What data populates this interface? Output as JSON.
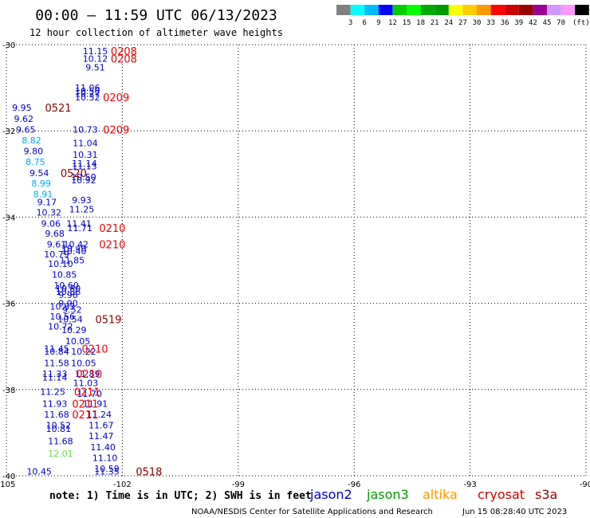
{
  "title": "00:00 – 11:59 UTC 06/13/2023",
  "subtitle": "12 hour collection of altimeter wave heights",
  "note": "note: 1) Time is in UTC; 2) SWH is in feet",
  "credit": "NOAA/NESDIS Center for Satellite Applications and Research",
  "generated": "Jun 15 08:28:40 UTC 2023",
  "color_scale": {
    "unit": "(ft)",
    "colors": [
      "#808080",
      "#00ffff",
      "#00bbff",
      "#0000ff",
      "#00cc00",
      "#00ff00",
      "#00aa00",
      "#009900",
      "#ffff00",
      "#ffcc00",
      "#ff9900",
      "#ff0000",
      "#cc0000",
      "#990000",
      "#990099",
      "#cc99ff",
      "#ff99ff",
      "#000000"
    ],
    "labels": [
      "3",
      "6",
      "9",
      "12",
      "15",
      "18",
      "21",
      "24",
      "27",
      "30",
      "33",
      "36",
      "39",
      "42",
      "45",
      "70"
    ]
  },
  "legend": [
    {
      "label": "jason2",
      "color": "#0000cc"
    },
    {
      "label": "jason3",
      "color": "#009900"
    },
    {
      "label": "altika",
      "color": "#ff9900"
    },
    {
      "label": "cryosat",
      "color": "#cc0000"
    },
    {
      "label": "s3a",
      "color": "#990000"
    }
  ],
  "chart_data": {
    "type": "scatter",
    "xlim": [
      -105,
      -90
    ],
    "ylim": [
      -40,
      -30
    ],
    "xticks": [
      "-105",
      "-102",
      "-99",
      "-96",
      "-93",
      "-90"
    ],
    "yticks": [
      "-30",
      "-32",
      "-34",
      "-36",
      "-38",
      "-40"
    ],
    "grid": true,
    "points": [
      {
        "x": -102.7,
        "y": -30.15,
        "t": "11.15",
        "c": "#0000cc"
      },
      {
        "x": -102.7,
        "y": -30.32,
        "t": "10.12",
        "c": "#0000cc"
      },
      {
        "x": -102.7,
        "y": -30.53,
        "t": "9.51",
        "c": "#0000cc"
      },
      {
        "x": -102.9,
        "y": -31.0,
        "t": "11.06",
        "c": "#0000cc"
      },
      {
        "x": -102.9,
        "y": -31.07,
        "t": "10.50",
        "c": "#0000cc"
      },
      {
        "x": -102.9,
        "y": -31.14,
        "t": "10.27",
        "c": "#0000cc"
      },
      {
        "x": -102.9,
        "y": -31.22,
        "t": "10.32",
        "c": "#0000cc"
      },
      {
        "x": -104.6,
        "y": -31.46,
        "t": "9.95",
        "c": "#0000cc"
      },
      {
        "x": -104.55,
        "y": -31.72,
        "t": "9.62",
        "c": "#0000cc"
      },
      {
        "x": -104.5,
        "y": -31.97,
        "t": "9.65",
        "c": "#0000cc"
      },
      {
        "x": -102.96,
        "y": -31.97,
        "t": "10.73",
        "c": "#0000cc"
      },
      {
        "x": -104.35,
        "y": -32.22,
        "t": "8.82",
        "c": "#00aaee"
      },
      {
        "x": -102.96,
        "y": -32.28,
        "t": "11.04",
        "c": "#0000cc"
      },
      {
        "x": -104.3,
        "y": -32.47,
        "t": "9.80",
        "c": "#0000cc"
      },
      {
        "x": -102.96,
        "y": -32.55,
        "t": "10.31",
        "c": "#0000cc"
      },
      {
        "x": -104.25,
        "y": -32.72,
        "t": "8.75",
        "c": "#00aaee"
      },
      {
        "x": -102.98,
        "y": -32.75,
        "t": "11.14",
        "c": "#0000cc"
      },
      {
        "x": -102.98,
        "y": -32.82,
        "t": "11.13",
        "c": "#0000cc"
      },
      {
        "x": -104.15,
        "y": -32.98,
        "t": "9.54",
        "c": "#0000cc"
      },
      {
        "x": -103.0,
        "y": -33.07,
        "t": "10.50",
        "c": "#0000cc"
      },
      {
        "x": -103.0,
        "y": -33.14,
        "t": "10.92",
        "c": "#0000cc"
      },
      {
        "x": -104.1,
        "y": -33.22,
        "t": "8.99",
        "c": "#00aaee"
      },
      {
        "x": -104.05,
        "y": -33.47,
        "t": "8.91",
        "c": "#00aaee"
      },
      {
        "x": -103.05,
        "y": -33.6,
        "t": "9.93",
        "c": "#0000cc"
      },
      {
        "x": -103.95,
        "y": -33.65,
        "t": "9.17",
        "c": "#0000cc"
      },
      {
        "x": -103.05,
        "y": -33.82,
        "t": "11.25",
        "c": "#0000cc"
      },
      {
        "x": -103.9,
        "y": -33.89,
        "t": "10.32",
        "c": "#0000cc"
      },
      {
        "x": -103.85,
        "y": -34.15,
        "t": "9.06",
        "c": "#0000cc"
      },
      {
        "x": -103.12,
        "y": -34.15,
        "t": "11.41",
        "c": "#0000cc"
      },
      {
        "x": -103.1,
        "y": -34.25,
        "t": "11.71",
        "c": "#0000cc"
      },
      {
        "x": -103.75,
        "y": -34.38,
        "t": "9.68",
        "c": "#0000cc"
      },
      {
        "x": -103.7,
        "y": -34.63,
        "t": "9.61",
        "c": "#0000cc"
      },
      {
        "x": -103.2,
        "y": -34.63,
        "t": "10.42",
        "c": "#0000cc"
      },
      {
        "x": -103.25,
        "y": -34.72,
        "t": "10.40",
        "c": "#0000cc"
      },
      {
        "x": -103.25,
        "y": -34.79,
        "t": "10.40",
        "c": "#0000cc"
      },
      {
        "x": -103.7,
        "y": -34.86,
        "t": "10.79",
        "c": "#0000cc"
      },
      {
        "x": -103.3,
        "y": -35.0,
        "t": "11.85",
        "c": "#0000cc"
      },
      {
        "x": -103.6,
        "y": -35.08,
        "t": "10.10",
        "c": "#0000cc"
      },
      {
        "x": -103.5,
        "y": -35.33,
        "t": "10.85",
        "c": "#0000cc"
      },
      {
        "x": -103.45,
        "y": -35.58,
        "t": "10.60",
        "c": "#0000cc"
      },
      {
        "x": -103.4,
        "y": -35.66,
        "t": "10.80",
        "c": "#0000cc"
      },
      {
        "x": -103.4,
        "y": -35.73,
        "t": "10.86",
        "c": "#0000cc"
      },
      {
        "x": -103.4,
        "y": -35.8,
        "t": "9.96",
        "c": "#0000cc"
      },
      {
        "x": -103.4,
        "y": -36.0,
        "t": "9.90",
        "c": "#0000cc"
      },
      {
        "x": -103.55,
        "y": -36.07,
        "t": "10.83",
        "c": "#0000cc"
      },
      {
        "x": -103.3,
        "y": -36.15,
        "t": "9.52",
        "c": "#0000cc"
      },
      {
        "x": -103.55,
        "y": -36.3,
        "t": "10.56",
        "c": "#0000cc"
      },
      {
        "x": -103.35,
        "y": -36.37,
        "t": "10.54",
        "c": "#0000cc"
      },
      {
        "x": -103.6,
        "y": -36.53,
        "t": "10.72",
        "c": "#0000cc"
      },
      {
        "x": -103.25,
        "y": -36.62,
        "t": "10.29",
        "c": "#0000cc"
      },
      {
        "x": -103.15,
        "y": -36.88,
        "t": "10.05",
        "c": "#0000cc"
      },
      {
        "x": -103.7,
        "y": -37.05,
        "t": "11.45",
        "c": "#0000cc"
      },
      {
        "x": -103.7,
        "y": -37.12,
        "t": "10.84",
        "c": "#0000cc"
      },
      {
        "x": -103.0,
        "y": -37.12,
        "t": "10.22",
        "c": "#0000cc"
      },
      {
        "x": -103.7,
        "y": -37.38,
        "t": "11.58",
        "c": "#0000cc"
      },
      {
        "x": -103.0,
        "y": -37.38,
        "t": "10.05",
        "c": "#0000cc"
      },
      {
        "x": -103.75,
        "y": -37.63,
        "t": "11.33",
        "c": "#0000cc"
      },
      {
        "x": -102.9,
        "y": -37.63,
        "t": "11.89",
        "c": "#0000cc"
      },
      {
        "x": -103.75,
        "y": -37.72,
        "t": "11.14",
        "c": "#0000cc"
      },
      {
        "x": -102.95,
        "y": -37.85,
        "t": "11.03",
        "c": "#0000cc"
      },
      {
        "x": -103.8,
        "y": -38.05,
        "t": "11.25",
        "c": "#0000cc"
      },
      {
        "x": -102.85,
        "y": -38.1,
        "t": "11.70",
        "c": "#0000cc"
      },
      {
        "x": -103.75,
        "y": -38.33,
        "t": "11.93",
        "c": "#0000cc"
      },
      {
        "x": -102.7,
        "y": -38.33,
        "t": "11.91",
        "c": "#0000cc"
      },
      {
        "x": -103.7,
        "y": -38.58,
        "t": "11.68",
        "c": "#0000cc"
      },
      {
        "x": -102.6,
        "y": -38.58,
        "t": "11.24",
        "c": "#0000cc"
      },
      {
        "x": -103.65,
        "y": -38.83,
        "t": "10.52",
        "c": "#0000cc"
      },
      {
        "x": -103.65,
        "y": -38.91,
        "t": "10.81",
        "c": "#0000cc"
      },
      {
        "x": -102.55,
        "y": -38.83,
        "t": "11.67",
        "c": "#0000cc"
      },
      {
        "x": -102.55,
        "y": -39.08,
        "t": "11.47",
        "c": "#0000cc"
      },
      {
        "x": -103.6,
        "y": -39.2,
        "t": "11.68",
        "c": "#0000cc"
      },
      {
        "x": -102.5,
        "y": -39.33,
        "t": "11.40",
        "c": "#0000cc"
      },
      {
        "x": -103.6,
        "y": -39.48,
        "t": "12.01",
        "c": "#66dd44"
      },
      {
        "x": -102.45,
        "y": -39.58,
        "t": "11.10",
        "c": "#0000cc"
      },
      {
        "x": -102.4,
        "y": -39.83,
        "t": "10.59",
        "c": "#0000cc"
      },
      {
        "x": -102.4,
        "y": -39.9,
        "t": "11.35",
        "c": "#0000cc"
      },
      {
        "x": -104.15,
        "y": -39.9,
        "t": "10.45",
        "c": "#0000cc"
      }
    ],
    "passes": [
      {
        "x": -102.3,
        "y": -30.15,
        "t": "0208",
        "c": "#ee0000"
      },
      {
        "x": -102.3,
        "y": -30.32,
        "t": "0208",
        "c": "#ee0000"
      },
      {
        "x": -102.5,
        "y": -31.22,
        "t": "0209",
        "c": "#ee0000"
      },
      {
        "x": -104.0,
        "y": -31.46,
        "t": "0521",
        "c": "#880000"
      },
      {
        "x": -102.5,
        "y": -31.97,
        "t": "0209",
        "c": "#ee0000"
      },
      {
        "x": -103.6,
        "y": -32.98,
        "t": "0520",
        "c": "#880000"
      },
      {
        "x": -102.6,
        "y": -34.25,
        "t": "0210",
        "c": "#ee0000"
      },
      {
        "x": -102.6,
        "y": -34.63,
        "t": "0210",
        "c": "#ee0000"
      },
      {
        "x": -102.7,
        "y": -36.37,
        "t": "0519",
        "c": "#880000"
      },
      {
        "x": -103.05,
        "y": -37.05,
        "t": "0210",
        "c": "#ee0000"
      },
      {
        "x": -103.2,
        "y": -37.63,
        "t": "0210",
        "c": "#ee0000"
      },
      {
        "x": -103.25,
        "y": -38.05,
        "t": "0211",
        "c": "#ee0000"
      },
      {
        "x": -103.3,
        "y": -38.33,
        "t": "0211",
        "c": "#ee0000"
      },
      {
        "x": -103.3,
        "y": -38.58,
        "t": "0211",
        "c": "#ee0000"
      },
      {
        "x": -101.65,
        "y": -39.9,
        "t": "0518",
        "c": "#880000"
      }
    ]
  }
}
